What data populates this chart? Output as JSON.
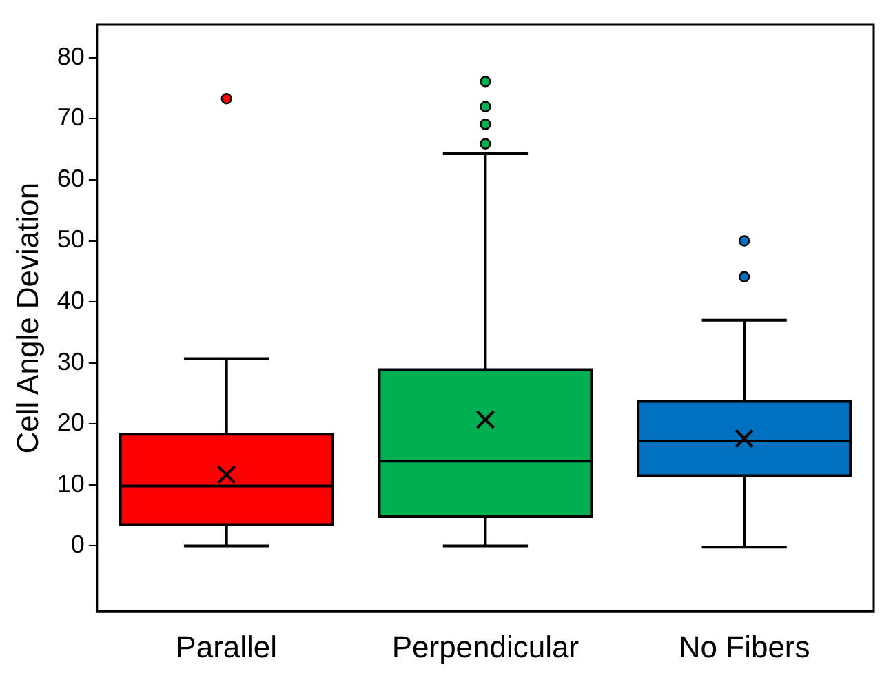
{
  "chart_data": {
    "type": "box",
    "ylabel": "Cell Angle Deviation",
    "categories": [
      "Parallel",
      "Perpendicular",
      "No Fibers"
    ],
    "colors": [
      "#ff0000",
      "#00b050",
      "#0070c0"
    ],
    "boxes": [
      {
        "low": 0,
        "q1": 3.5,
        "median": 9.8,
        "q3": 18.3,
        "high": 30.7,
        "mean": 11.7,
        "outliers": [
          73.3
        ]
      },
      {
        "low": 0,
        "q1": 4.8,
        "median": 13.9,
        "q3": 28.9,
        "high": 64.3,
        "mean": 20.7,
        "outliers": [
          65.9,
          69.1,
          72,
          76.1
        ]
      },
      {
        "low": -0.2,
        "q1": 11.5,
        "median": 17.2,
        "q3": 23.7,
        "high": 37,
        "mean": 17.6,
        "outliers": [
          44.1,
          50
        ]
      }
    ],
    "ylim": [
      -10.7,
      85.4
    ],
    "yticks": [
      0,
      10,
      20,
      30,
      40,
      50,
      60,
      70,
      80
    ],
    "grid": false,
    "legend": false
  }
}
